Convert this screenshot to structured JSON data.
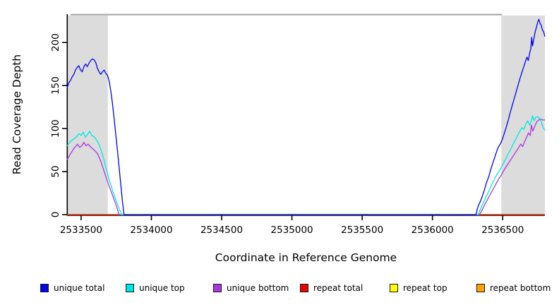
{
  "chart_data": {
    "type": "line",
    "title": "",
    "xlabel": "Coordinate in Reference Genome",
    "ylabel": "Read Coverage Depth",
    "xlim": [
      2533400,
      2536800
    ],
    "ylim": [
      0,
      233
    ],
    "x_ticks": [
      2533500,
      2534000,
      2534500,
      2535000,
      2535500,
      2536000,
      2536500
    ],
    "y_ticks": [
      0,
      50,
      100,
      150,
      200
    ],
    "grid": false,
    "legend_position": "bottom",
    "axis_color": "#000000",
    "shaded_regions": [
      {
        "from": 2533400,
        "to": 2533690,
        "color": "#dcdcdc"
      },
      {
        "from": 2536490,
        "to": 2536800,
        "color": "#dcdcdc"
      }
    ],
    "top_bar": {
      "from": 2533425,
      "to": 2536495,
      "color": "#a8a8a8"
    },
    "series": [
      {
        "name": "unique total",
        "color": "#0202ef",
        "points": [
          [
            2533400,
            147
          ],
          [
            2533412,
            153
          ],
          [
            2533424,
            156
          ],
          [
            2533436,
            160
          ],
          [
            2533448,
            163
          ],
          [
            2533460,
            168
          ],
          [
            2533472,
            171
          ],
          [
            2533484,
            173
          ],
          [
            2533496,
            168
          ],
          [
            2533508,
            166
          ],
          [
            2533520,
            172
          ],
          [
            2533532,
            175
          ],
          [
            2533544,
            172
          ],
          [
            2533556,
            176
          ],
          [
            2533568,
            179
          ],
          [
            2533580,
            181
          ],
          [
            2533592,
            180
          ],
          [
            2533604,
            177
          ],
          [
            2533616,
            170
          ],
          [
            2533628,
            166
          ],
          [
            2533640,
            163
          ],
          [
            2533652,
            166
          ],
          [
            2533664,
            168
          ],
          [
            2533676,
            164
          ],
          [
            2533688,
            162
          ],
          [
            2533700,
            155
          ],
          [
            2533712,
            143
          ],
          [
            2533724,
            128
          ],
          [
            2533736,
            110
          ],
          [
            2533748,
            91
          ],
          [
            2533760,
            72
          ],
          [
            2533772,
            52
          ],
          [
            2533784,
            32
          ],
          [
            2533794,
            15
          ],
          [
            2533806,
            0
          ],
          [
            2536310,
            0
          ],
          [
            2536318,
            6
          ],
          [
            2536328,
            11
          ],
          [
            2536340,
            15
          ],
          [
            2536354,
            21
          ],
          [
            2536368,
            28
          ],
          [
            2536384,
            37
          ],
          [
            2536400,
            44
          ],
          [
            2536416,
            53
          ],
          [
            2536432,
            61
          ],
          [
            2536448,
            69
          ],
          [
            2536462,
            76
          ],
          [
            2536474,
            80
          ],
          [
            2536486,
            83
          ],
          [
            2536498,
            88
          ],
          [
            2536512,
            95
          ],
          [
            2536526,
            102
          ],
          [
            2536540,
            110
          ],
          [
            2536554,
            119
          ],
          [
            2536568,
            127
          ],
          [
            2536582,
            135
          ],
          [
            2536596,
            143
          ],
          [
            2536610,
            151
          ],
          [
            2536624,
            159
          ],
          [
            2536638,
            166
          ],
          [
            2536650,
            172
          ],
          [
            2536662,
            178
          ],
          [
            2536672,
            183
          ],
          [
            2536682,
            179
          ],
          [
            2536692,
            188
          ],
          [
            2536700,
            193
          ],
          [
            2536706,
            206
          ],
          [
            2536712,
            196
          ],
          [
            2536720,
            203
          ],
          [
            2536730,
            212
          ],
          [
            2536740,
            218
          ],
          [
            2536750,
            224
          ],
          [
            2536758,
            227
          ],
          [
            2536766,
            222
          ],
          [
            2536774,
            220
          ],
          [
            2536782,
            215
          ],
          [
            2536792,
            212
          ],
          [
            2536800,
            207
          ]
        ]
      },
      {
        "name": "unique top",
        "color": "#00e6e6",
        "points": [
          [
            2533400,
            80
          ],
          [
            2533415,
            83
          ],
          [
            2533430,
            86
          ],
          [
            2533450,
            88
          ],
          [
            2533470,
            91
          ],
          [
            2533485,
            94
          ],
          [
            2533500,
            92
          ],
          [
            2533515,
            96
          ],
          [
            2533530,
            90
          ],
          [
            2533545,
            93
          ],
          [
            2533560,
            97
          ],
          [
            2533575,
            92
          ],
          [
            2533590,
            91
          ],
          [
            2533605,
            88
          ],
          [
            2533620,
            84
          ],
          [
            2533640,
            76
          ],
          [
            2533660,
            65
          ],
          [
            2533680,
            52
          ],
          [
            2533700,
            40
          ],
          [
            2533720,
            30
          ],
          [
            2533740,
            20
          ],
          [
            2533760,
            11
          ],
          [
            2533775,
            5
          ],
          [
            2533790,
            0
          ],
          [
            2536325,
            0
          ],
          [
            2536340,
            6
          ],
          [
            2536360,
            13
          ],
          [
            2536380,
            20
          ],
          [
            2536400,
            27
          ],
          [
            2536420,
            34
          ],
          [
            2536440,
            41
          ],
          [
            2536460,
            47
          ],
          [
            2536480,
            52
          ],
          [
            2536500,
            58
          ],
          [
            2536520,
            64
          ],
          [
            2536540,
            71
          ],
          [
            2536560,
            77
          ],
          [
            2536580,
            84
          ],
          [
            2536600,
            90
          ],
          [
            2536618,
            96
          ],
          [
            2536636,
            101
          ],
          [
            2536650,
            99
          ],
          [
            2536664,
            105
          ],
          [
            2536678,
            109
          ],
          [
            2536692,
            104
          ],
          [
            2536702,
            108
          ],
          [
            2536712,
            115
          ],
          [
            2536722,
            109
          ],
          [
            2536734,
            113
          ],
          [
            2536748,
            114
          ],
          [
            2536762,
            112
          ],
          [
            2536776,
            107
          ],
          [
            2536788,
            101
          ],
          [
            2536800,
            98
          ]
        ]
      },
      {
        "name": "unique bottom",
        "color": "#a839e2",
        "points": [
          [
            2533400,
            64
          ],
          [
            2533415,
            68
          ],
          [
            2533430,
            72
          ],
          [
            2533445,
            76
          ],
          [
            2533460,
            79
          ],
          [
            2533475,
            82
          ],
          [
            2533490,
            78
          ],
          [
            2533505,
            80
          ],
          [
            2533520,
            84
          ],
          [
            2533535,
            80
          ],
          [
            2533550,
            82
          ],
          [
            2533565,
            79
          ],
          [
            2533580,
            77
          ],
          [
            2533600,
            74
          ],
          [
            2533620,
            70
          ],
          [
            2533640,
            62
          ],
          [
            2533660,
            52
          ],
          [
            2533680,
            42
          ],
          [
            2533700,
            33
          ],
          [
            2533720,
            24
          ],
          [
            2533740,
            15
          ],
          [
            2533755,
            8
          ],
          [
            2533770,
            0
          ],
          [
            2536335,
            0
          ],
          [
            2536352,
            5
          ],
          [
            2536370,
            11
          ],
          [
            2536390,
            17
          ],
          [
            2536410,
            23
          ],
          [
            2536430,
            29
          ],
          [
            2536450,
            35
          ],
          [
            2536470,
            41
          ],
          [
            2536490,
            46
          ],
          [
            2536510,
            52
          ],
          [
            2536530,
            57
          ],
          [
            2536550,
            62
          ],
          [
            2536570,
            67
          ],
          [
            2536590,
            72
          ],
          [
            2536610,
            77
          ],
          [
            2536628,
            82
          ],
          [
            2536642,
            79
          ],
          [
            2536656,
            85
          ],
          [
            2536670,
            90
          ],
          [
            2536684,
            95
          ],
          [
            2536696,
            92
          ],
          [
            2536704,
            104
          ],
          [
            2536714,
            97
          ],
          [
            2536728,
            103
          ],
          [
            2536742,
            108
          ],
          [
            2536756,
            110
          ],
          [
            2536770,
            111
          ],
          [
            2536784,
            110
          ],
          [
            2536800,
            110
          ]
        ]
      },
      {
        "name": "repeat total",
        "color": "#e80202",
        "points": [
          [
            2533400,
            0
          ],
          [
            2536800,
            0
          ]
        ]
      },
      {
        "name": "repeat top",
        "color": "#fdfd02",
        "points": [
          [
            2533400,
            0
          ],
          [
            2536800,
            0
          ]
        ]
      },
      {
        "name": "repeat bottom",
        "color": "#ffa002",
        "points": [
          [
            2533400,
            0
          ],
          [
            2536800,
            0
          ]
        ]
      }
    ]
  }
}
